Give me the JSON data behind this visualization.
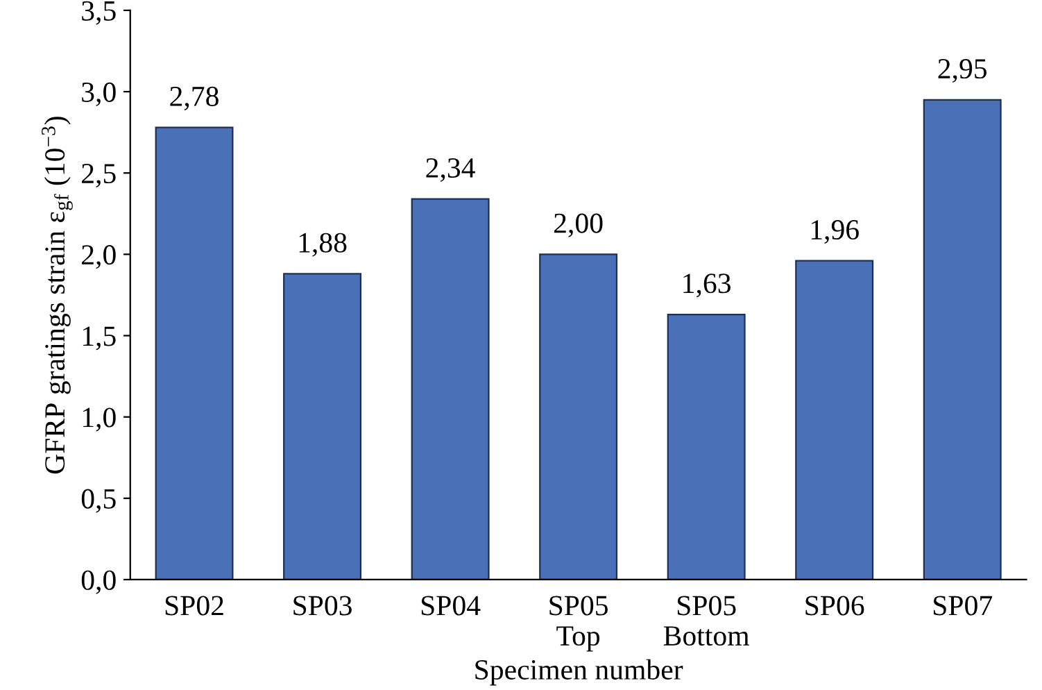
{
  "chart_data": {
    "type": "bar",
    "categories": [
      "SP02",
      "SP03",
      "SP04",
      "SP05\nTop",
      "SP05\nBottom",
      "SP06",
      "SP07"
    ],
    "values": [
      2.78,
      1.88,
      2.34,
      2.0,
      1.63,
      1.96,
      2.95
    ],
    "value_labels": [
      "2,78",
      "1,88",
      "2,34",
      "2,00",
      "1,63",
      "1,96",
      "2,95"
    ],
    "color": "#4a70b8",
    "xlabel": "Specimen number",
    "ylabel": "GFRP gratings strain ε$_{gf}$ (10$^{−3}$)",
    "ylim": [
      0,
      3.5
    ],
    "yticks": [
      {
        "value": 0,
        "label": "0,0"
      },
      {
        "value": 0.5,
        "label": "0,5"
      },
      {
        "value": 1,
        "label": "1,0"
      },
      {
        "value": 1.5,
        "label": "1,5"
      },
      {
        "value": 2,
        "label": "2,0"
      },
      {
        "value": 2.5,
        "label": "2,5"
      },
      {
        "value": 3,
        "label": "3,0"
      },
      {
        "value": 3.5,
        "label": "3,5"
      }
    ],
    "grid": false,
    "legend": false
  }
}
